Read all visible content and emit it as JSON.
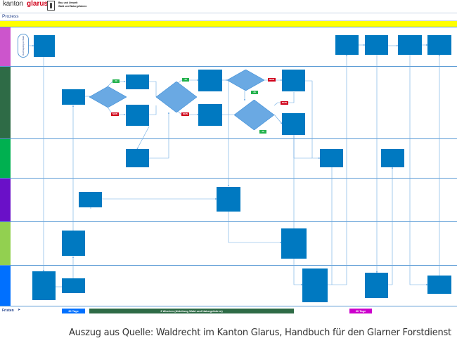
{
  "header": {
    "brand_kanton": "kanton",
    "brand_glarus": "glarus",
    "department_line1": "Bau und Umwelt",
    "department_line2": "Wald und Naturgefahren"
  },
  "process_label": "Prozess",
  "start_node_label": "Rechtsgültig ist Wald",
  "decisions": {
    "yes": "JA",
    "no": "NEIN"
  },
  "lanes": [
    {
      "color": "#cc55cc"
    },
    {
      "color": "#2e6b46"
    },
    {
      "color": "#00b050"
    },
    {
      "color": "#6a10c8"
    },
    {
      "color": "#92d050"
    },
    {
      "color": "#0070ff"
    }
  ],
  "fristen": {
    "label": "Fristen",
    "periods": [
      {
        "label": "30 Tage",
        "color": "#0070ff"
      },
      {
        "label": "3 Wochen (Abteilung Wald und Naturgefahren)",
        "color": "#2e6b46"
      },
      {
        "label": "30 Tage",
        "color": "#cc00cc"
      }
    ]
  },
  "caption": "Auszug aus Quelle: Waldrecht im Kanton Glarus, Handbuch für den Glarner Forstdienst",
  "colors": {
    "box": "#0079c1",
    "diamond": "#6aa9e3",
    "connector": "#6aa9e3",
    "yes_badge": "#22b14c",
    "no_badge": "#d0021b",
    "accent_bar": "#ffff00"
  }
}
